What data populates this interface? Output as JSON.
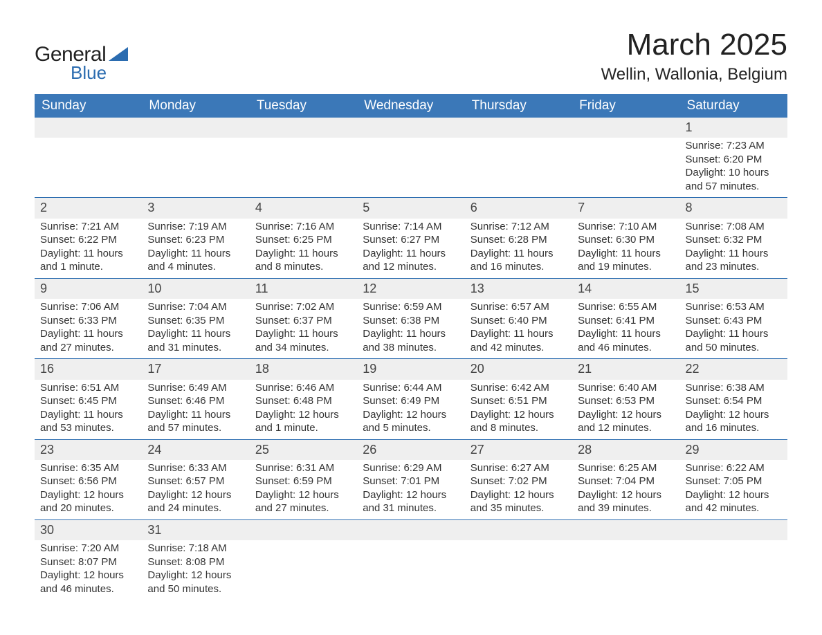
{
  "logo": {
    "word1": "General",
    "word2": "Blue"
  },
  "title": {
    "month": "March 2025",
    "location": "Wellin, Wallonia, Belgium"
  },
  "style": {
    "header_bg": "#3b78b8",
    "header_fg": "#ffffff",
    "daynum_bg": "#efefef",
    "border_color": "#2b6cb0",
    "text_color": "#333333",
    "title_fontsize": 44,
    "location_fontsize": 24,
    "header_fontsize": 19,
    "day_fontsize": 18,
    "detail_fontsize": 15,
    "columns": 7
  },
  "day_headers": [
    "Sunday",
    "Monday",
    "Tuesday",
    "Wednesday",
    "Thursday",
    "Friday",
    "Saturday"
  ],
  "labels": {
    "sunrise": "Sunrise:",
    "sunset": "Sunset:",
    "daylight": "Daylight:"
  },
  "weeks": [
    [
      null,
      null,
      null,
      null,
      null,
      null,
      {
        "d": "1",
        "sunrise": "7:23 AM",
        "sunset": "6:20 PM",
        "daylight": "10 hours and 57 minutes."
      }
    ],
    [
      {
        "d": "2",
        "sunrise": "7:21 AM",
        "sunset": "6:22 PM",
        "daylight": "11 hours and 1 minute."
      },
      {
        "d": "3",
        "sunrise": "7:19 AM",
        "sunset": "6:23 PM",
        "daylight": "11 hours and 4 minutes."
      },
      {
        "d": "4",
        "sunrise": "7:16 AM",
        "sunset": "6:25 PM",
        "daylight": "11 hours and 8 minutes."
      },
      {
        "d": "5",
        "sunrise": "7:14 AM",
        "sunset": "6:27 PM",
        "daylight": "11 hours and 12 minutes."
      },
      {
        "d": "6",
        "sunrise": "7:12 AM",
        "sunset": "6:28 PM",
        "daylight": "11 hours and 16 minutes."
      },
      {
        "d": "7",
        "sunrise": "7:10 AM",
        "sunset": "6:30 PM",
        "daylight": "11 hours and 19 minutes."
      },
      {
        "d": "8",
        "sunrise": "7:08 AM",
        "sunset": "6:32 PM",
        "daylight": "11 hours and 23 minutes."
      }
    ],
    [
      {
        "d": "9",
        "sunrise": "7:06 AM",
        "sunset": "6:33 PM",
        "daylight": "11 hours and 27 minutes."
      },
      {
        "d": "10",
        "sunrise": "7:04 AM",
        "sunset": "6:35 PM",
        "daylight": "11 hours and 31 minutes."
      },
      {
        "d": "11",
        "sunrise": "7:02 AM",
        "sunset": "6:37 PM",
        "daylight": "11 hours and 34 minutes."
      },
      {
        "d": "12",
        "sunrise": "6:59 AM",
        "sunset": "6:38 PM",
        "daylight": "11 hours and 38 minutes."
      },
      {
        "d": "13",
        "sunrise": "6:57 AM",
        "sunset": "6:40 PM",
        "daylight": "11 hours and 42 minutes."
      },
      {
        "d": "14",
        "sunrise": "6:55 AM",
        "sunset": "6:41 PM",
        "daylight": "11 hours and 46 minutes."
      },
      {
        "d": "15",
        "sunrise": "6:53 AM",
        "sunset": "6:43 PM",
        "daylight": "11 hours and 50 minutes."
      }
    ],
    [
      {
        "d": "16",
        "sunrise": "6:51 AM",
        "sunset": "6:45 PM",
        "daylight": "11 hours and 53 minutes."
      },
      {
        "d": "17",
        "sunrise": "6:49 AM",
        "sunset": "6:46 PM",
        "daylight": "11 hours and 57 minutes."
      },
      {
        "d": "18",
        "sunrise": "6:46 AM",
        "sunset": "6:48 PM",
        "daylight": "12 hours and 1 minute."
      },
      {
        "d": "19",
        "sunrise": "6:44 AM",
        "sunset": "6:49 PM",
        "daylight": "12 hours and 5 minutes."
      },
      {
        "d": "20",
        "sunrise": "6:42 AM",
        "sunset": "6:51 PM",
        "daylight": "12 hours and 8 minutes."
      },
      {
        "d": "21",
        "sunrise": "6:40 AM",
        "sunset": "6:53 PM",
        "daylight": "12 hours and 12 minutes."
      },
      {
        "d": "22",
        "sunrise": "6:38 AM",
        "sunset": "6:54 PM",
        "daylight": "12 hours and 16 minutes."
      }
    ],
    [
      {
        "d": "23",
        "sunrise": "6:35 AM",
        "sunset": "6:56 PM",
        "daylight": "12 hours and 20 minutes."
      },
      {
        "d": "24",
        "sunrise": "6:33 AM",
        "sunset": "6:57 PM",
        "daylight": "12 hours and 24 minutes."
      },
      {
        "d": "25",
        "sunrise": "6:31 AM",
        "sunset": "6:59 PM",
        "daylight": "12 hours and 27 minutes."
      },
      {
        "d": "26",
        "sunrise": "6:29 AM",
        "sunset": "7:01 PM",
        "daylight": "12 hours and 31 minutes."
      },
      {
        "d": "27",
        "sunrise": "6:27 AM",
        "sunset": "7:02 PM",
        "daylight": "12 hours and 35 minutes."
      },
      {
        "d": "28",
        "sunrise": "6:25 AM",
        "sunset": "7:04 PM",
        "daylight": "12 hours and 39 minutes."
      },
      {
        "d": "29",
        "sunrise": "6:22 AM",
        "sunset": "7:05 PM",
        "daylight": "12 hours and 42 minutes."
      }
    ],
    [
      {
        "d": "30",
        "sunrise": "7:20 AM",
        "sunset": "8:07 PM",
        "daylight": "12 hours and 46 minutes."
      },
      {
        "d": "31",
        "sunrise": "7:18 AM",
        "sunset": "8:08 PM",
        "daylight": "12 hours and 50 minutes."
      },
      null,
      null,
      null,
      null,
      null
    ]
  ]
}
